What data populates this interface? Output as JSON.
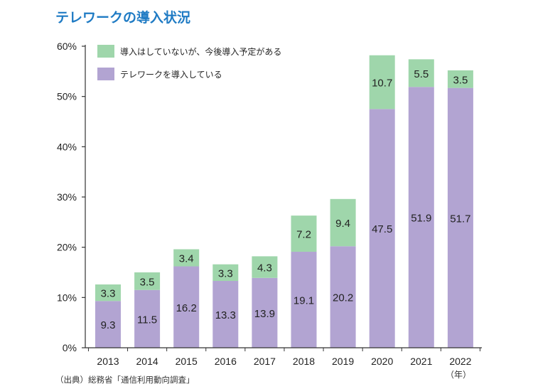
{
  "title": "テレワークの導入状況",
  "source": "（出典）総務省「通信利用動向調査」",
  "x_unit": "（年）",
  "colors": {
    "introduced": "#b2a4d2",
    "planned": "#9fd6ab",
    "axis": "#333333",
    "title": "#1f7bc4"
  },
  "chart_data": {
    "type": "bar",
    "stacked": true,
    "categories": [
      "2013",
      "2014",
      "2015",
      "2016",
      "2017",
      "2018",
      "2019",
      "2020",
      "2021",
      "2022"
    ],
    "series": [
      {
        "name": "テレワークを導入している",
        "values": [
          9.3,
          11.5,
          16.2,
          13.3,
          13.9,
          19.1,
          20.2,
          47.5,
          51.9,
          51.7
        ]
      },
      {
        "name": "導入はしていないが、今後導入予定がある",
        "values": [
          3.3,
          3.5,
          3.4,
          3.3,
          4.3,
          7.2,
          9.4,
          10.7,
          5.5,
          3.5
        ]
      }
    ],
    "ylim": [
      0,
      60
    ],
    "yticks": [
      "0%",
      "10%",
      "20%",
      "30%",
      "40%",
      "50%",
      "60%"
    ],
    "legend": "top-left",
    "grid": false
  }
}
